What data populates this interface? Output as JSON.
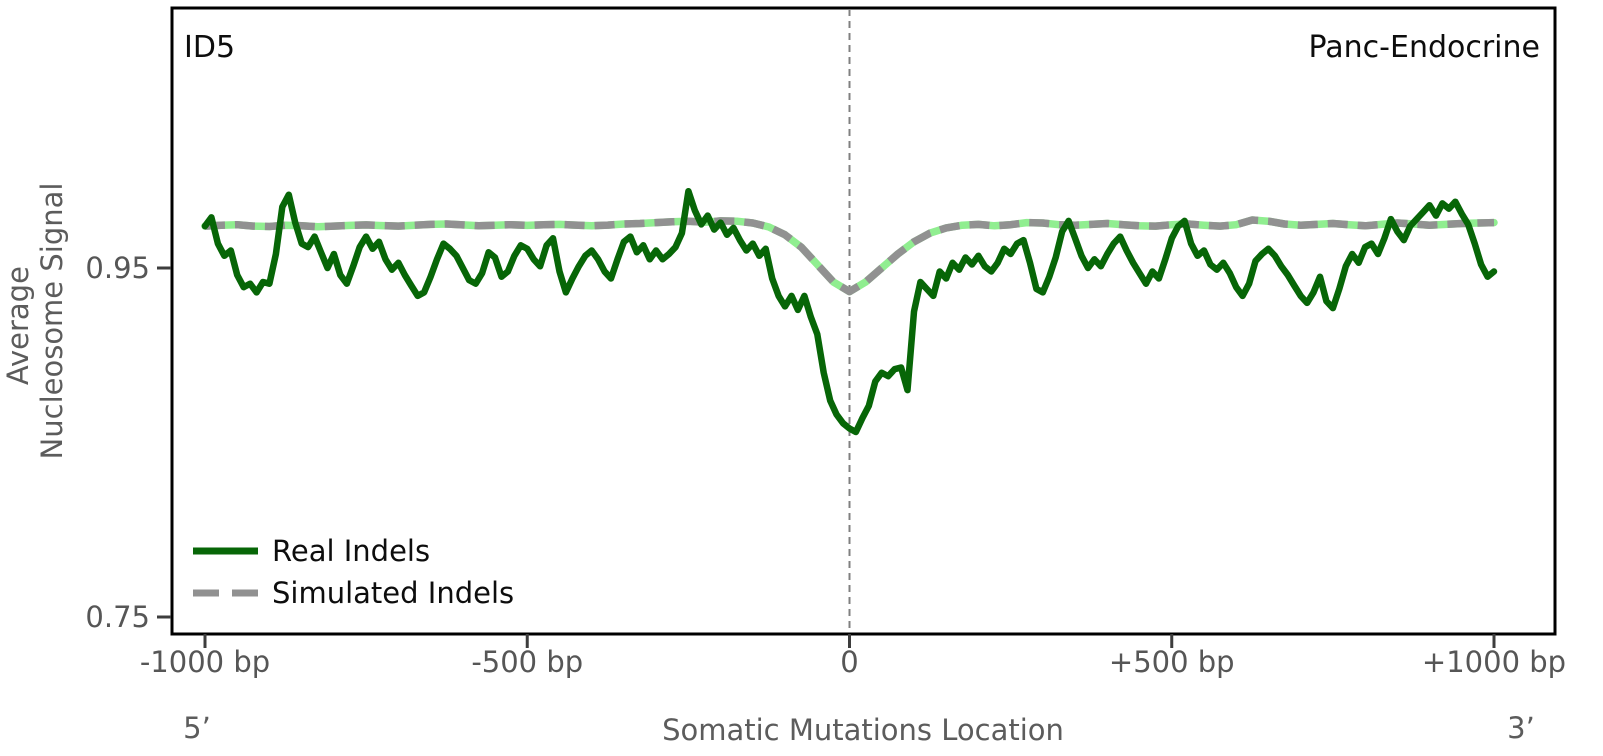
{
  "header": {
    "title_left": "ID5",
    "title_right": "Panc-Endocrine"
  },
  "axes": {
    "y": {
      "label_line1": "Average",
      "label_line2": "Nucleosome Signal",
      "ticks": [
        {
          "label": "0.95",
          "value": 0.95
        },
        {
          "label": "0.75",
          "value": 0.75
        }
      ]
    },
    "x": {
      "label": "Somatic Mutations Location",
      "end_label_left": "5’",
      "end_label_right": "3’",
      "ticks": [
        {
          "label": "-1000 bp",
          "bp": -1000
        },
        {
          "label": "-500 bp",
          "bp": -500
        },
        {
          "label": "0",
          "bp": 0
        },
        {
          "label": "+500 bp",
          "bp": 500
        },
        {
          "label": "+1000 bp",
          "bp": 1000
        }
      ]
    }
  },
  "legend": {
    "items": [
      {
        "label": "Real Indels",
        "style": "solid",
        "color": "#076607"
      },
      {
        "label": "Simulated Indels",
        "style": "dashed",
        "color": "#919191"
      }
    ]
  },
  "colors": {
    "real_line": "#076607",
    "simulated_dash": "#919191",
    "simulated_under": "#90ee90",
    "center_line": "#808080",
    "spine": "#000000",
    "tick_text": "#565656",
    "title_text": "#0d0d0d"
  },
  "chart_data": {
    "type": "line",
    "title": "",
    "xlabel": "Somatic Mutations Location",
    "ylabel": "Average Nucleosome Signal",
    "xlim": [
      -1000,
      1000
    ],
    "ylim": [
      0.74,
      1.1
    ],
    "grid": false,
    "legend_position": "lower left",
    "center_reference_line_x": 0,
    "series": [
      {
        "name": "Real Indels",
        "type": "line",
        "x_start": -1000,
        "x_step": 10,
        "values": [
          0.974,
          0.979,
          0.964,
          0.957,
          0.96,
          0.946,
          0.939,
          0.941,
          0.936,
          0.942,
          0.941,
          0.958,
          0.985,
          0.992,
          0.976,
          0.964,
          0.962,
          0.968,
          0.959,
          0.95,
          0.958,
          0.946,
          0.941,
          0.951,
          0.962,
          0.968,
          0.961,
          0.965,
          0.955,
          0.949,
          0.953,
          0.946,
          0.94,
          0.934,
          0.936,
          0.945,
          0.955,
          0.964,
          0.961,
          0.957,
          0.95,
          0.943,
          0.941,
          0.947,
          0.959,
          0.956,
          0.945,
          0.948,
          0.957,
          0.963,
          0.961,
          0.955,
          0.951,
          0.963,
          0.967,
          0.948,
          0.936,
          0.944,
          0.951,
          0.957,
          0.96,
          0.955,
          0.948,
          0.944,
          0.955,
          0.965,
          0.968,
          0.959,
          0.963,
          0.955,
          0.96,
          0.955,
          0.958,
          0.962,
          0.97,
          0.994,
          0.983,
          0.975,
          0.98,
          0.972,
          0.976,
          0.969,
          0.973,
          0.966,
          0.96,
          0.964,
          0.957,
          0.961,
          0.944,
          0.934,
          0.928,
          0.934,
          0.926,
          0.934,
          0.922,
          0.912,
          0.89,
          0.874,
          0.866,
          0.861,
          0.858,
          0.856,
          0.864,
          0.871,
          0.885,
          0.89,
          0.888,
          0.892,
          0.893,
          0.88,
          0.925,
          0.942,
          0.938,
          0.934,
          0.948,
          0.944,
          0.953,
          0.949,
          0.956,
          0.952,
          0.957,
          0.951,
          0.948,
          0.953,
          0.961,
          0.958,
          0.964,
          0.966,
          0.953,
          0.938,
          0.936,
          0.945,
          0.956,
          0.971,
          0.977,
          0.967,
          0.957,
          0.95,
          0.955,
          0.951,
          0.958,
          0.964,
          0.968,
          0.96,
          0.953,
          0.947,
          0.941,
          0.948,
          0.944,
          0.955,
          0.967,
          0.974,
          0.977,
          0.964,
          0.957,
          0.96,
          0.952,
          0.949,
          0.953,
          0.947,
          0.939,
          0.934,
          0.941,
          0.954,
          0.958,
          0.961,
          0.957,
          0.951,
          0.946,
          0.94,
          0.934,
          0.93,
          0.936,
          0.945,
          0.931,
          0.927,
          0.938,
          0.951,
          0.958,
          0.953,
          0.962,
          0.964,
          0.958,
          0.967,
          0.978,
          0.971,
          0.966,
          0.974,
          0.978,
          0.982,
          0.986,
          0.98,
          0.987,
          0.984,
          0.988,
          0.981,
          0.975,
          0.964,
          0.952,
          0.945,
          0.948
        ]
      },
      {
        "name": "Simulated Indels",
        "type": "line",
        "x_start": -1000,
        "x_step": 25,
        "values": [
          0.974,
          0.9745,
          0.9748,
          0.974,
          0.9738,
          0.9745,
          0.9742,
          0.9736,
          0.974,
          0.9744,
          0.9747,
          0.9743,
          0.974,
          0.9745,
          0.975,
          0.9752,
          0.9747,
          0.9742,
          0.9745,
          0.9748,
          0.9744,
          0.9748,
          0.975,
          0.9746,
          0.9742,
          0.9746,
          0.9752,
          0.9755,
          0.976,
          0.9765,
          0.9768,
          0.9762,
          0.977,
          0.9768,
          0.9758,
          0.9735,
          0.969,
          0.962,
          0.952,
          0.942,
          0.9365,
          0.942,
          0.95,
          0.958,
          0.965,
          0.97,
          0.973,
          0.9745,
          0.975,
          0.9742,
          0.9748,
          0.976,
          0.9758,
          0.9748,
          0.9745,
          0.975,
          0.9755,
          0.9748,
          0.9742,
          0.974,
          0.9748,
          0.9752,
          0.9745,
          0.974,
          0.9748,
          0.9775,
          0.9768,
          0.9752,
          0.9745,
          0.975,
          0.9755,
          0.9748,
          0.9742,
          0.975,
          0.9758,
          0.9752,
          0.9745,
          0.975,
          0.9755,
          0.9758,
          0.976
        ]
      }
    ]
  }
}
